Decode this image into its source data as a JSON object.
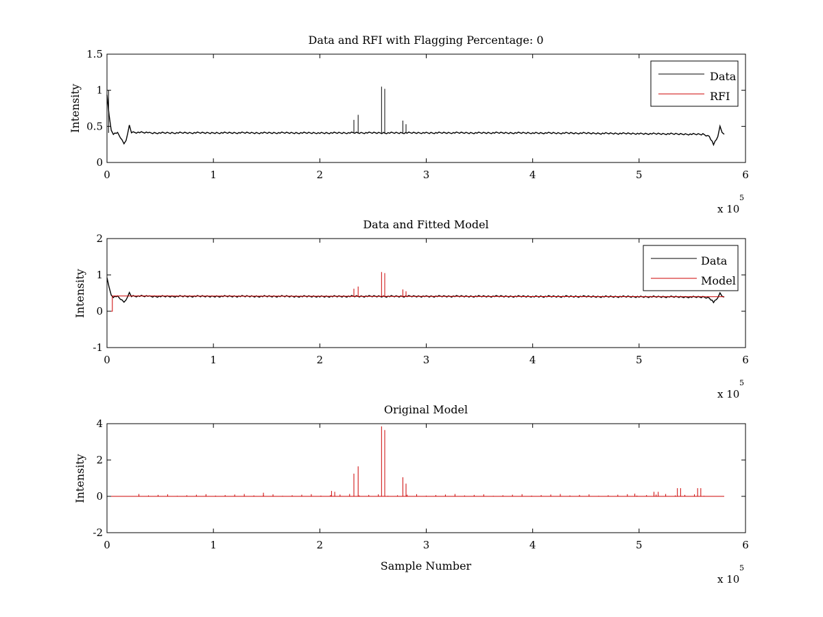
{
  "colors": {
    "data": "#000000",
    "rfi": "#cc0000",
    "model": "#cc0000"
  },
  "chart_data": [
    {
      "type": "line",
      "title": "Data and RFI with Flagging Percentage: 0",
      "xlabel": "",
      "ylabel": "Intensity",
      "xlim": [
        0,
        600000
      ],
      "ylim": [
        0,
        1.5
      ],
      "xticks": [
        0,
        1,
        2,
        3,
        4,
        5,
        6
      ],
      "yticks": [
        "0",
        "0.5",
        "1",
        "1.5"
      ],
      "ytick_values": [
        0,
        0.5,
        1,
        1.5
      ],
      "x_exponent": {
        "base": "x 10",
        "power": "5"
      },
      "legend": {
        "position": "top-right",
        "entries": [
          {
            "name": "Data",
            "color": "#000000"
          },
          {
            "name": "RFI",
            "color": "#cc0000"
          }
        ]
      },
      "series": [
        {
          "name": "Data",
          "color": "#000000",
          "x": [
            0,
            2000,
            4000,
            6000,
            10000,
            14000,
            16000,
            18000,
            21000,
            23000,
            40000,
            100000,
            200000,
            300000,
            400000,
            500000,
            560000,
            566000,
            570000,
            574000,
            576000,
            578000,
            580000
          ],
          "y": [
            0.95,
            0.65,
            0.45,
            0.4,
            0.41,
            0.32,
            0.27,
            0.3,
            0.52,
            0.42,
            0.41,
            0.41,
            0.41,
            0.41,
            0.41,
            0.4,
            0.39,
            0.36,
            0.25,
            0.35,
            0.5,
            0.42,
            0.39
          ],
          "spikes": [
            [
              1500,
              1.0
            ],
            [
              232000,
              0.59
            ],
            [
              236000,
              0.66
            ],
            [
              258000,
              1.05
            ],
            [
              261000,
              1.02
            ],
            [
              278000,
              0.58
            ],
            [
              281000,
              0.53
            ]
          ]
        },
        {
          "name": "RFI",
          "color": "#cc0000",
          "x": [],
          "y": []
        }
      ]
    },
    {
      "type": "line",
      "title": "Data and Fitted Model",
      "xlabel": "",
      "ylabel": "Intensity",
      "xlim": [
        0,
        600000
      ],
      "ylim": [
        -1,
        2
      ],
      "xticks": [
        0,
        1,
        2,
        3,
        4,
        5,
        6
      ],
      "yticks": [
        "-1",
        "0",
        "1",
        "2"
      ],
      "ytick_values": [
        -1,
        0,
        1,
        2
      ],
      "x_exponent": {
        "base": "x 10",
        "power": "5"
      },
      "legend": {
        "position": "top-right",
        "entries": [
          {
            "name": "Data",
            "color": "#000000"
          },
          {
            "name": "Model",
            "color": "#cc0000"
          }
        ]
      },
      "series": [
        {
          "name": "Data",
          "color": "#000000",
          "x": [
            0,
            2000,
            4000,
            6000,
            10000,
            14000,
            16000,
            18000,
            21000,
            23000,
            40000,
            100000,
            200000,
            300000,
            400000,
            500000,
            560000,
            566000,
            570000,
            574000,
            576000,
            578000,
            580000
          ],
          "y": [
            0.95,
            0.65,
            0.45,
            0.4,
            0.41,
            0.32,
            0.27,
            0.3,
            0.52,
            0.42,
            0.41,
            0.41,
            0.41,
            0.41,
            0.41,
            0.4,
            0.39,
            0.36,
            0.25,
            0.35,
            0.5,
            0.42,
            0.39
          ],
          "spikes": []
        },
        {
          "name": "Model",
          "color": "#cc0000",
          "x": [
            0,
            5000,
            5000,
            580000
          ],
          "y": [
            0,
            0,
            0.42,
            0.4
          ],
          "spikes": [
            [
              232000,
              0.62
            ],
            [
              236000,
              0.68
            ],
            [
              258000,
              1.08
            ],
            [
              261000,
              1.05
            ],
            [
              278000,
              0.6
            ],
            [
              281000,
              0.55
            ]
          ]
        }
      ]
    },
    {
      "type": "line",
      "title": "Original Model",
      "xlabel": "Sample Number",
      "ylabel": "Intensity",
      "xlim": [
        0,
        600000
      ],
      "ylim": [
        -2,
        4
      ],
      "xticks": [
        0,
        1,
        2,
        3,
        4,
        5,
        6
      ],
      "yticks": [
        "-2",
        "0",
        "2",
        "4"
      ],
      "ytick_values": [
        -2,
        0,
        2,
        4
      ],
      "x_exponent": {
        "base": "x 10",
        "power": "5"
      },
      "legend": null,
      "series": [
        {
          "name": "",
          "color": "#cc0000",
          "x": [
            0,
            580000
          ],
          "y": [
            0,
            0
          ],
          "spikes": [
            [
              211000,
              0.3
            ],
            [
              214000,
              0.25
            ],
            [
              232000,
              1.25
            ],
            [
              236000,
              1.65
            ],
            [
              258000,
              3.85
            ],
            [
              261000,
              3.65
            ],
            [
              278000,
              1.05
            ],
            [
              281000,
              0.7
            ],
            [
              147000,
              0.2
            ],
            [
              496000,
              0.15
            ],
            [
              514000,
              0.25
            ],
            [
              518000,
              0.25
            ],
            [
              536000,
              0.45
            ],
            [
              539000,
              0.45
            ],
            [
              555000,
              0.45
            ],
            [
              558000,
              0.45
            ]
          ]
        }
      ]
    }
  ]
}
